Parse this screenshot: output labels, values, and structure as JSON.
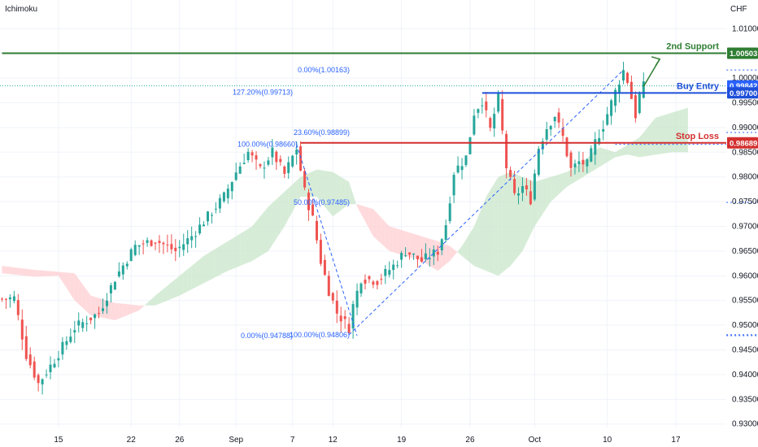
{
  "chart_data": {
    "type": "candlestick",
    "indicator": "Ichimoku",
    "currency": "CHF",
    "ylim": [
      0.9293,
      1.0158
    ],
    "y_ticks": [
      "1.01000",
      "1.00000",
      "0.99500",
      "0.99000",
      "0.98500",
      "0.98000",
      "0.97500",
      "0.97000",
      "0.96500",
      "0.96000",
      "0.95500",
      "0.95000",
      "0.94500",
      "0.94000",
      "0.93500",
      "0.93000"
    ],
    "x_ticks": [
      {
        "label": "15",
        "i": 14
      },
      {
        "label": "22",
        "i": 32
      },
      {
        "label": "26",
        "i": 44
      },
      {
        "label": "Sep",
        "i": 58
      },
      {
        "label": "7",
        "i": 72
      },
      {
        "label": "12",
        "i": 82
      },
      {
        "label": "19",
        "i": 99
      },
      {
        "label": "26",
        "i": 116
      },
      {
        "label": "Oct",
        "i": 132
      },
      {
        "label": "10",
        "i": 150
      },
      {
        "label": "17",
        "i": 167
      }
    ],
    "anchors": [
      {
        "i": 0,
        "p": 0.9553
      },
      {
        "i": 3,
        "p": 0.9555
      },
      {
        "i": 6,
        "p": 0.944
      },
      {
        "i": 9,
        "p": 0.9382
      },
      {
        "i": 13,
        "p": 0.943
      },
      {
        "i": 18,
        "p": 0.9495
      },
      {
        "i": 24,
        "p": 0.9525
      },
      {
        "i": 28,
        "p": 0.9595
      },
      {
        "i": 33,
        "p": 0.966
      },
      {
        "i": 38,
        "p": 0.9672
      },
      {
        "i": 43,
        "p": 0.965
      },
      {
        "i": 47,
        "p": 0.968
      },
      {
        "i": 51,
        "p": 0.972
      },
      {
        "i": 55,
        "p": 0.976
      },
      {
        "i": 58,
        "p": 0.981
      },
      {
        "i": 61,
        "p": 0.985
      },
      {
        "i": 64,
        "p": 0.9815
      },
      {
        "i": 67,
        "p": 0.985
      },
      {
        "i": 70,
        "p": 0.9805
      },
      {
        "i": 73,
        "p": 0.9858
      },
      {
        "i": 75,
        "p": 0.977
      },
      {
        "i": 77,
        "p": 0.9715
      },
      {
        "i": 79,
        "p": 0.963
      },
      {
        "i": 81,
        "p": 0.957
      },
      {
        "i": 83,
        "p": 0.9525
      },
      {
        "i": 86,
        "p": 0.9495
      },
      {
        "i": 87,
        "p": 0.954
      },
      {
        "i": 89,
        "p": 0.9595
      },
      {
        "i": 93,
        "p": 0.959
      },
      {
        "i": 97,
        "p": 0.962
      },
      {
        "i": 100,
        "p": 0.965
      },
      {
        "i": 104,
        "p": 0.963
      },
      {
        "i": 108,
        "p": 0.965
      },
      {
        "i": 110,
        "p": 0.9705
      },
      {
        "i": 112,
        "p": 0.981
      },
      {
        "i": 115,
        "p": 0.984
      },
      {
        "i": 117,
        "p": 0.993
      },
      {
        "i": 119,
        "p": 0.9955
      },
      {
        "i": 121,
        "p": 0.9895
      },
      {
        "i": 123,
        "p": 0.996
      },
      {
        "i": 125,
        "p": 0.982
      },
      {
        "i": 127,
        "p": 0.976
      },
      {
        "i": 129,
        "p": 0.978
      },
      {
        "i": 131,
        "p": 0.9755
      },
      {
        "i": 133,
        "p": 0.986
      },
      {
        "i": 135,
        "p": 0.99
      },
      {
        "i": 137,
        "p": 0.9925
      },
      {
        "i": 139,
        "p": 0.988
      },
      {
        "i": 141,
        "p": 0.9815
      },
      {
        "i": 143,
        "p": 0.983
      },
      {
        "i": 145,
        "p": 0.9825
      },
      {
        "i": 147,
        "p": 0.987
      },
      {
        "i": 149,
        "p": 0.9905
      },
      {
        "i": 151,
        "p": 0.995
      },
      {
        "i": 153,
        "p": 0.9995
      },
      {
        "i": 154,
        "p": 1.0015
      },
      {
        "i": 155,
        "p": 0.9995
      },
      {
        "i": 156,
        "p": 0.996
      },
      {
        "i": 157,
        "p": 0.9925
      },
      {
        "i": 158,
        "p": 0.9965
      },
      {
        "i": 159,
        "p": 0.9983
      }
    ],
    "cloud": [
      {
        "i": 0,
        "a": 0.9605,
        "b": 0.962
      },
      {
        "i": 8,
        "a": 0.9598,
        "b": 0.9612
      },
      {
        "i": 14,
        "a": 0.96,
        "b": 0.9608
      },
      {
        "i": 18,
        "a": 0.955,
        "b": 0.9605
      },
      {
        "i": 22,
        "a": 0.952,
        "b": 0.956
      },
      {
        "i": 28,
        "a": 0.951,
        "b": 0.9545
      },
      {
        "i": 34,
        "a": 0.953,
        "b": 0.954
      },
      {
        "i": 38,
        "a": 0.956,
        "b": 0.954
      },
      {
        "i": 44,
        "a": 0.96,
        "b": 0.956
      },
      {
        "i": 50,
        "a": 0.964,
        "b": 0.9585
      },
      {
        "i": 56,
        "a": 0.967,
        "b": 0.961
      },
      {
        "i": 62,
        "a": 0.97,
        "b": 0.963
      },
      {
        "i": 66,
        "a": 0.974,
        "b": 0.965
      },
      {
        "i": 70,
        "a": 0.977,
        "b": 0.97
      },
      {
        "i": 74,
        "a": 0.98,
        "b": 0.976
      },
      {
        "i": 78,
        "a": 0.9815,
        "b": 0.976
      },
      {
        "i": 82,
        "a": 0.981,
        "b": 0.972
      },
      {
        "i": 86,
        "a": 0.979,
        "b": 0.9745
      },
      {
        "i": 88,
        "a": 0.974,
        "b": 0.9745
      },
      {
        "i": 92,
        "a": 0.968,
        "b": 0.9735
      },
      {
        "i": 96,
        "a": 0.965,
        "b": 0.97
      },
      {
        "i": 100,
        "a": 0.964,
        "b": 0.969
      },
      {
        "i": 104,
        "a": 0.963,
        "b": 0.968
      },
      {
        "i": 108,
        "a": 0.961,
        "b": 0.967
      },
      {
        "i": 111,
        "a": 0.963,
        "b": 0.966
      },
      {
        "i": 114,
        "a": 0.966,
        "b": 0.964
      },
      {
        "i": 117,
        "a": 0.97,
        "b": 0.962
      },
      {
        "i": 120,
        "a": 0.976,
        "b": 0.961
      },
      {
        "i": 123,
        "a": 0.98,
        "b": 0.96
      },
      {
        "i": 126,
        "a": 0.981,
        "b": 0.962
      },
      {
        "i": 129,
        "a": 0.98,
        "b": 0.965
      },
      {
        "i": 132,
        "a": 0.979,
        "b": 0.97
      },
      {
        "i": 136,
        "a": 0.98,
        "b": 0.975
      },
      {
        "i": 140,
        "a": 0.981,
        "b": 0.978
      },
      {
        "i": 144,
        "a": 0.983,
        "b": 0.98
      },
      {
        "i": 148,
        "a": 0.986,
        "b": 0.982
      },
      {
        "i": 152,
        "a": 0.985,
        "b": 0.984
      },
      {
        "i": 155,
        "a": 0.9865,
        "b": 0.9845
      },
      {
        "i": 158,
        "a": 0.988,
        "b": 0.984
      },
      {
        "i": 162,
        "a": 0.992,
        "b": 0.9845
      },
      {
        "i": 166,
        "a": 0.993,
        "b": 0.985
      },
      {
        "i": 170,
        "a": 0.994,
        "b": 0.985
      }
    ],
    "fib_levels": [
      {
        "label": "0.00%(1.00163)",
        "price": 1.00163,
        "x_from": 187,
        "label_x": 430
      },
      {
        "label": "127.20%(0.99713)",
        "price": 0.99713,
        "x_from": 186,
        "label_x": 360
      },
      {
        "label": "23.60%(0.98899)",
        "price": 0.98899,
        "x_from": 191,
        "label_x": 430
      },
      {
        "label": "100.00%(0.98660)",
        "price": 0.9866,
        "x_from": 152,
        "label_x": 366
      },
      {
        "label": "50.00%(0.97485)",
        "price": 0.97485,
        "x_from": 191,
        "label_x": 430
      },
      {
        "label": "0.00%(0.94788)",
        "price": 0.94788,
        "x_from": 187,
        "label_x": 360
      },
      {
        "label": "100.00%(0.94806)",
        "price": 0.94806,
        "x_from": 192,
        "label_x": 430
      }
    ],
    "annotations": [
      {
        "label": "2nd Support",
        "price": 1.00503,
        "color": "#2e7d32",
        "line_from": 0
      },
      {
        "label": "Buy Entry",
        "price": 0.997,
        "color": "#1e4fd9",
        "line_from": 119
      },
      {
        "label": "Stop Loss",
        "price": 0.98689,
        "color": "#d32f2f",
        "line_from": 74
      }
    ],
    "price_tags": [
      {
        "label": "1.00503",
        "price": 1.00503,
        "color": "#2e7d32"
      },
      {
        "label": "0.99842",
        "price": 0.99842,
        "color": "#2962ff"
      },
      {
        "label": "0.99700",
        "price": 0.997,
        "color": "#1e4fd9"
      },
      {
        "label": "0.98689",
        "price": 0.98689,
        "color": "#d32f2f"
      }
    ],
    "last_price": 0.99842,
    "colors": {
      "up": "#26a69a",
      "down": "#ef5350",
      "fib": "#2962ff",
      "cloud_bull": "#c8e6c9",
      "cloud_bear": "#ffcdd2",
      "grid": "#f0f3fa"
    },
    "legend": "none",
    "grid": true
  },
  "header": {
    "indicator_label": "Ichimoku",
    "currency_label": "CHF"
  }
}
